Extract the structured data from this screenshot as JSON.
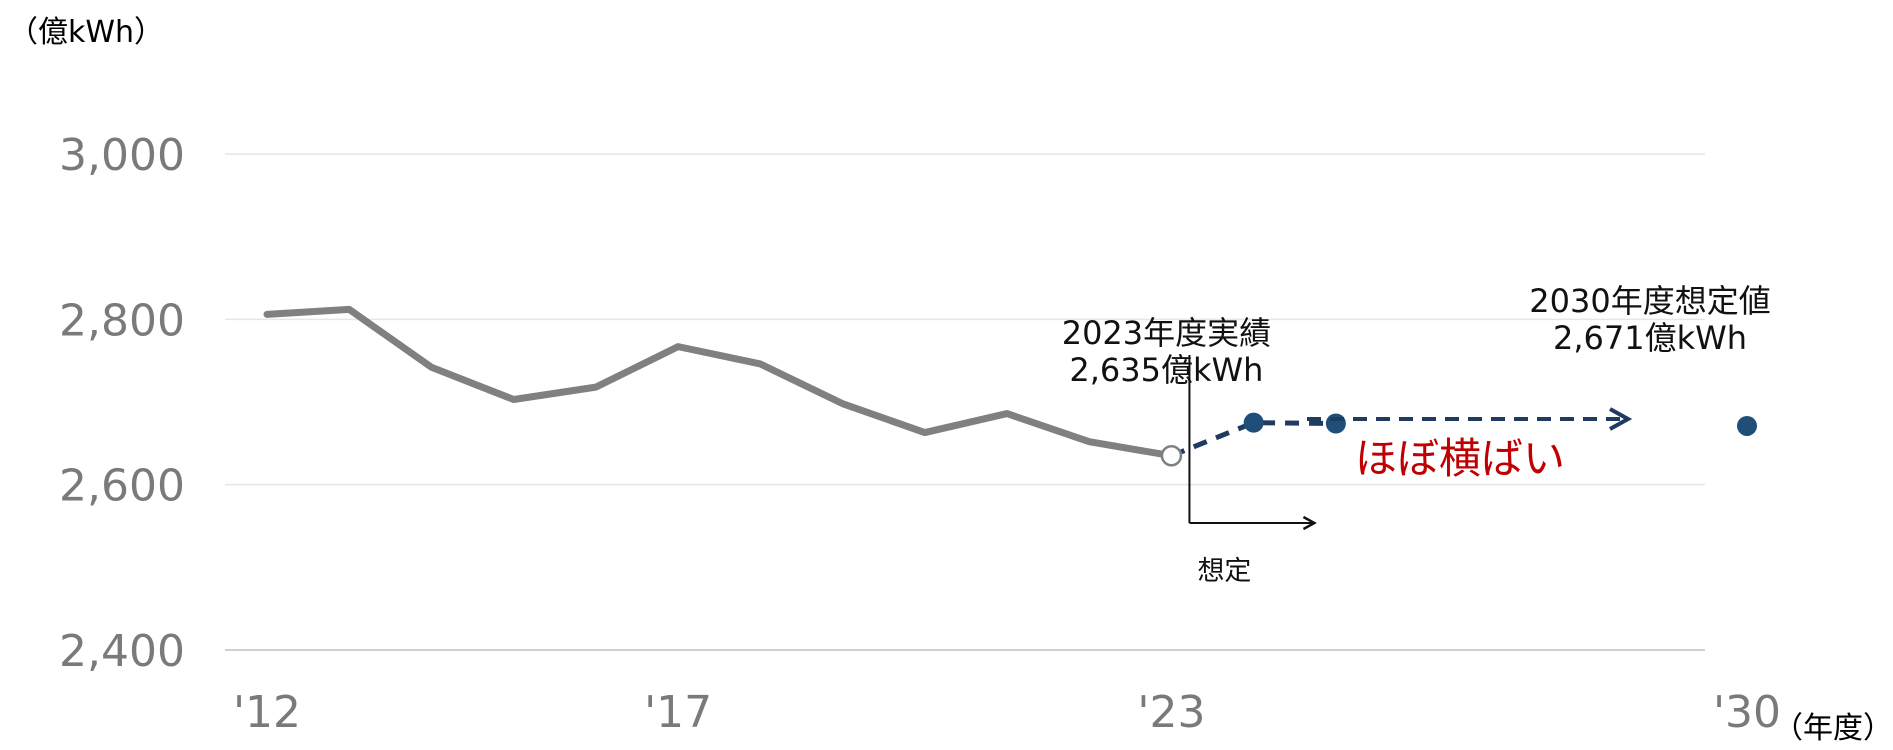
{
  "chart_data": {
    "type": "line",
    "ylabel": "（億kWh）",
    "xlabel": "（年度）",
    "ylim": [
      2400,
      3000
    ],
    "yticks": [
      {
        "value": 2400,
        "label": "2,400"
      },
      {
        "value": 2600,
        "label": "2,600"
      },
      {
        "value": 2800,
        "label": "2,800"
      },
      {
        "value": 3000,
        "label": "3,000"
      }
    ],
    "xlim": [
      2012,
      2030
    ],
    "xticks": [
      {
        "value": 2012,
        "label": "'12"
      },
      {
        "value": 2017,
        "label": "'17"
      },
      {
        "value": 2023,
        "label": "'23"
      },
      {
        "value": 2030,
        "label": "'30"
      }
    ],
    "grid": true,
    "actual": {
      "color": "#808080",
      "x": [
        2012,
        2013,
        2014,
        2015,
        2016,
        2017,
        2018,
        2019,
        2020,
        2021,
        2022,
        2023
      ],
      "y": [
        2806,
        2812,
        2742,
        2703,
        2718,
        2767,
        2746,
        2698,
        2663,
        2686,
        2652,
        2635
      ]
    },
    "projection": {
      "color": "#1f4e79",
      "x": [
        2023,
        2024,
        2025
      ],
      "y": [
        2635,
        2675,
        2674
      ]
    },
    "target": {
      "color": "#1f4e79",
      "x": 2030,
      "y": 2671
    },
    "annotations": {
      "actual_2023_line1": "2023年度実績",
      "actual_2023_line2": "2,635億kWh",
      "target_line1": "2030年度想定値",
      "target_line2": "2,671億kWh",
      "assumption": "想定",
      "flat_trend": "ほぼ横ばい",
      "flat_trend_color": "#c00000"
    }
  }
}
